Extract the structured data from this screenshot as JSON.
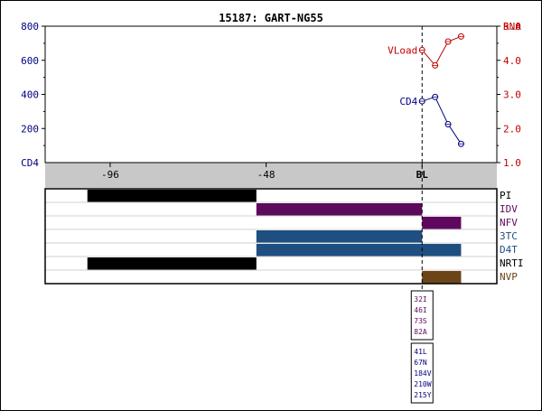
{
  "title": "15187: GART-NG55",
  "colors": {
    "cd4": "#000080",
    "rna": "#c00000",
    "band": "#c8c8c8",
    "black": "#000000",
    "idv": "#5c0a5c",
    "nfv": "#600860",
    "d4t": "#1f4f80",
    "nvp": "#6b4418",
    "grid": "#d0d0d0"
  },
  "chart_data": {
    "type": "line",
    "x_axis": {
      "ticks": [
        {
          "value": -96,
          "label": "-96"
        },
        {
          "value": -48,
          "label": "-48"
        },
        {
          "value": 0,
          "label": "BL"
        }
      ],
      "range": [
        -116,
        23
      ]
    },
    "left_axis": {
      "label": "CD4",
      "range": [
        0,
        800
      ],
      "ticks": [
        {
          "value": 200,
          "label": "200"
        },
        {
          "value": 400,
          "label": "400"
        },
        {
          "value": 600,
          "label": "600"
        },
        {
          "value": 800,
          "label": "800"
        }
      ]
    },
    "right_axis": {
      "label": "RNA",
      "range": [
        1.0,
        5.0
      ],
      "ticks": [
        {
          "value": 1.0,
          "label": "1.0"
        },
        {
          "value": 2.0,
          "label": "2.0"
        },
        {
          "value": 3.0,
          "label": "3.0"
        },
        {
          "value": 4.0,
          "label": "4.0"
        },
        {
          "value": 5.0,
          "label": "5.0"
        }
      ]
    },
    "series": [
      {
        "name": "VLoad",
        "axis": "right",
        "color": "#c00000",
        "x": [
          0,
          4,
          8,
          12
        ],
        "y": [
          4.3,
          3.85,
          4.55,
          4.7
        ]
      },
      {
        "name": "CD4",
        "axis": "left",
        "color": "#000080",
        "x": [
          0,
          4,
          8,
          12
        ],
        "y": [
          360,
          385,
          225,
          110
        ]
      }
    ],
    "drug_rows": [
      {
        "name": "PI",
        "color": "#000000",
        "bars": [
          [
            -103,
            -51
          ]
        ]
      },
      {
        "name": "IDV",
        "color": "#5c0a5c",
        "bars": [
          [
            -51,
            0
          ]
        ]
      },
      {
        "name": "NFV",
        "color": "#600860",
        "bars": [
          [
            0,
            12
          ]
        ]
      },
      {
        "name": "3TC",
        "color": "#1f4f80",
        "bars": [
          [
            -51,
            0
          ]
        ]
      },
      {
        "name": "D4T",
        "color": "#1f4f80",
        "bars": [
          [
            -51,
            12
          ]
        ]
      },
      {
        "name": "NRTI",
        "color": "#000000",
        "bars": [
          [
            -103,
            -51
          ]
        ]
      },
      {
        "name": "NVP",
        "color": "#6b4418",
        "bars": [
          [
            0,
            12
          ]
        ]
      }
    ],
    "mutations": [
      {
        "color": "#5c0a5c",
        "items": [
          "32I",
          "46I",
          "73S",
          "82A"
        ]
      },
      {
        "color": "#000080",
        "items": [
          "41L",
          "67N",
          "184V",
          "210W",
          "215Y"
        ]
      }
    ]
  }
}
